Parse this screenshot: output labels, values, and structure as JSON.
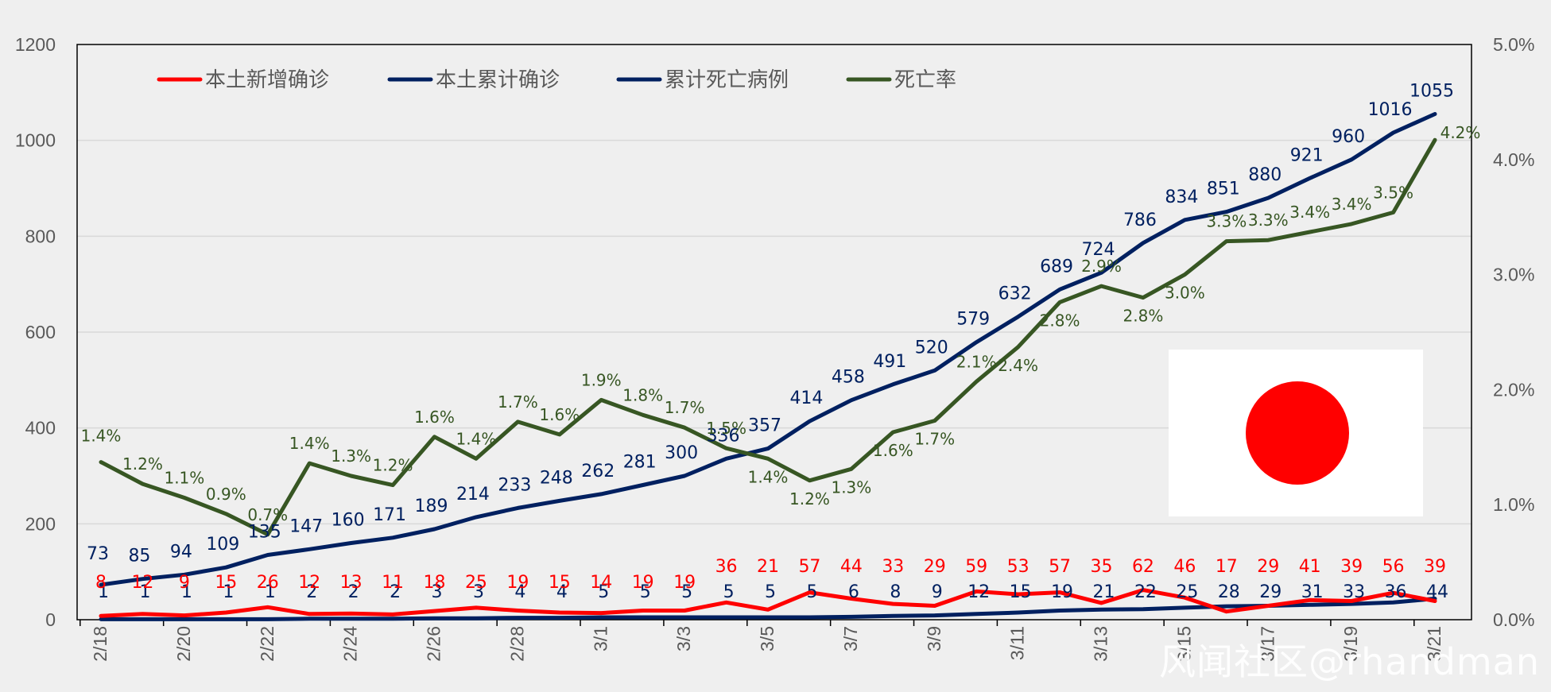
{
  "watermark": "风闻社区@rhandman",
  "flag": {
    "name": "Japan flag",
    "field_color": "#ffffff",
    "disc_color": "#ff0000"
  },
  "colors": {
    "red": "#ff0000",
    "blue": "#002060",
    "green": "#375623",
    "grid": "#d9d9d9",
    "background": "#efefef"
  },
  "chart_data": {
    "type": "line",
    "title": "",
    "categories": [
      "2/18",
      "2/19",
      "2/20",
      "2/21",
      "2/22",
      "2/23",
      "2/24",
      "2/25",
      "2/26",
      "2/27",
      "2/28",
      "2/29",
      "3/1",
      "3/2",
      "3/3",
      "3/4",
      "3/5",
      "3/6",
      "3/7",
      "3/8",
      "3/9",
      "3/10",
      "3/11",
      "3/12",
      "3/13",
      "3/14",
      "3/15",
      "3/16",
      "3/17",
      "3/18",
      "3/19",
      "3/20",
      "3/21"
    ],
    "x_tick_labels": [
      "2/18",
      "2/20",
      "2/22",
      "2/24",
      "2/26",
      "2/28",
      "3/1",
      "3/3",
      "3/5",
      "3/7",
      "3/9",
      "3/11",
      "3/13",
      "3/15",
      "3/17",
      "3/19",
      "3/21"
    ],
    "y_left": {
      "min": 0,
      "max": 1200,
      "ticks": [
        "0",
        "200",
        "400",
        "600",
        "800",
        "1000",
        "1200"
      ]
    },
    "y_right": {
      "min": 0,
      "max": 5,
      "ticks": [
        "0.0%",
        "1.0%",
        "2.0%",
        "3.0%",
        "4.0%",
        "5.0%"
      ]
    },
    "grid": true,
    "legend_position": "top-left",
    "series": [
      {
        "name": "本土新增确诊",
        "axis": "left",
        "color": "#ff0000",
        "values": [
          8,
          12,
          9,
          15,
          26,
          12,
          13,
          11,
          18,
          25,
          19,
          15,
          14,
          19,
          19,
          36,
          21,
          57,
          44,
          33,
          29,
          59,
          53,
          57,
          35,
          62,
          46,
          17,
          29,
          41,
          39,
          56,
          39
        ],
        "labels": [
          "8",
          "12",
          "9",
          "15",
          "26",
          "12",
          "13",
          "11",
          "18",
          "25",
          "19",
          "15",
          "14",
          "19",
          "19",
          "36",
          "21",
          "57",
          "44",
          "33",
          "29",
          "59",
          "53",
          "57",
          "35",
          "62",
          "46",
          "17",
          "29",
          "41",
          "39",
          "56",
          "39"
        ]
      },
      {
        "name": "本土累计确诊",
        "axis": "left",
        "color": "#002060",
        "values": [
          73,
          85,
          94,
          109,
          135,
          147,
          160,
          171,
          189,
          214,
          233,
          248,
          262,
          281,
          300,
          336,
          357,
          414,
          458,
          491,
          520,
          579,
          632,
          689,
          724,
          786,
          834,
          851,
          880,
          921,
          960,
          1016,
          1055
        ],
        "labels": [
          "73",
          "85",
          "94",
          "109",
          "135",
          "147",
          "160",
          "171",
          "189",
          "214",
          "233",
          "248",
          "262",
          "281",
          "300",
          "336",
          "357",
          "414",
          "458",
          "491",
          "520",
          "579",
          "632",
          "689",
          "724",
          "786",
          "834",
          "851",
          "880",
          "921",
          "960",
          "1016",
          "1055"
        ]
      },
      {
        "name": "累计死亡病例",
        "axis": "left",
        "color": "#002060",
        "values": [
          1,
          1,
          1,
          1,
          1,
          2,
          2,
          2,
          3,
          3,
          4,
          4,
          5,
          5,
          5,
          5,
          5,
          5,
          6,
          8,
          9,
          12,
          15,
          19,
          21,
          22,
          25,
          28,
          29,
          31,
          33,
          36,
          44
        ],
        "labels": [
          "1",
          "1",
          "1",
          "1",
          "1",
          "2",
          "2",
          "2",
          "3",
          "3",
          "4",
          "4",
          "5",
          "5",
          "5",
          "5",
          "5",
          "5",
          "6",
          "8",
          "9",
          "12",
          "15",
          "19",
          "21",
          "22",
          "25",
          "28",
          "29",
          "31",
          "33",
          "36",
          "44"
        ]
      },
      {
        "name": "死亡率",
        "axis": "right",
        "color": "#375623",
        "values": [
          1.37,
          1.18,
          1.06,
          0.92,
          0.74,
          1.36,
          1.25,
          1.17,
          1.59,
          1.4,
          1.72,
          1.61,
          1.91,
          1.78,
          1.67,
          1.49,
          1.4,
          1.21,
          1.31,
          1.63,
          1.73,
          2.07,
          2.37,
          2.76,
          2.9,
          2.8,
          3.0,
          3.29,
          3.3,
          3.37,
          3.44,
          3.54,
          4.17
        ],
        "labels": [
          "1.4%",
          "1.2%",
          "1.1%",
          "0.9%",
          "0.7%",
          "1.4%",
          "1.3%",
          "1.2%",
          "1.6%",
          "1.4%",
          "1.7%",
          "1.6%",
          "1.9%",
          "1.8%",
          "1.7%",
          "1.5%",
          "1.4%",
          "1.2%",
          "1.3%",
          "1.6%",
          "1.7%",
          "2.1%",
          "2.4%",
          "2.8%",
          "2.9%",
          "2.8%",
          "3.0%",
          "3.3%",
          "3.3%",
          "3.4%",
          "3.4%",
          "3.5%",
          "4.2%"
        ]
      }
    ]
  }
}
